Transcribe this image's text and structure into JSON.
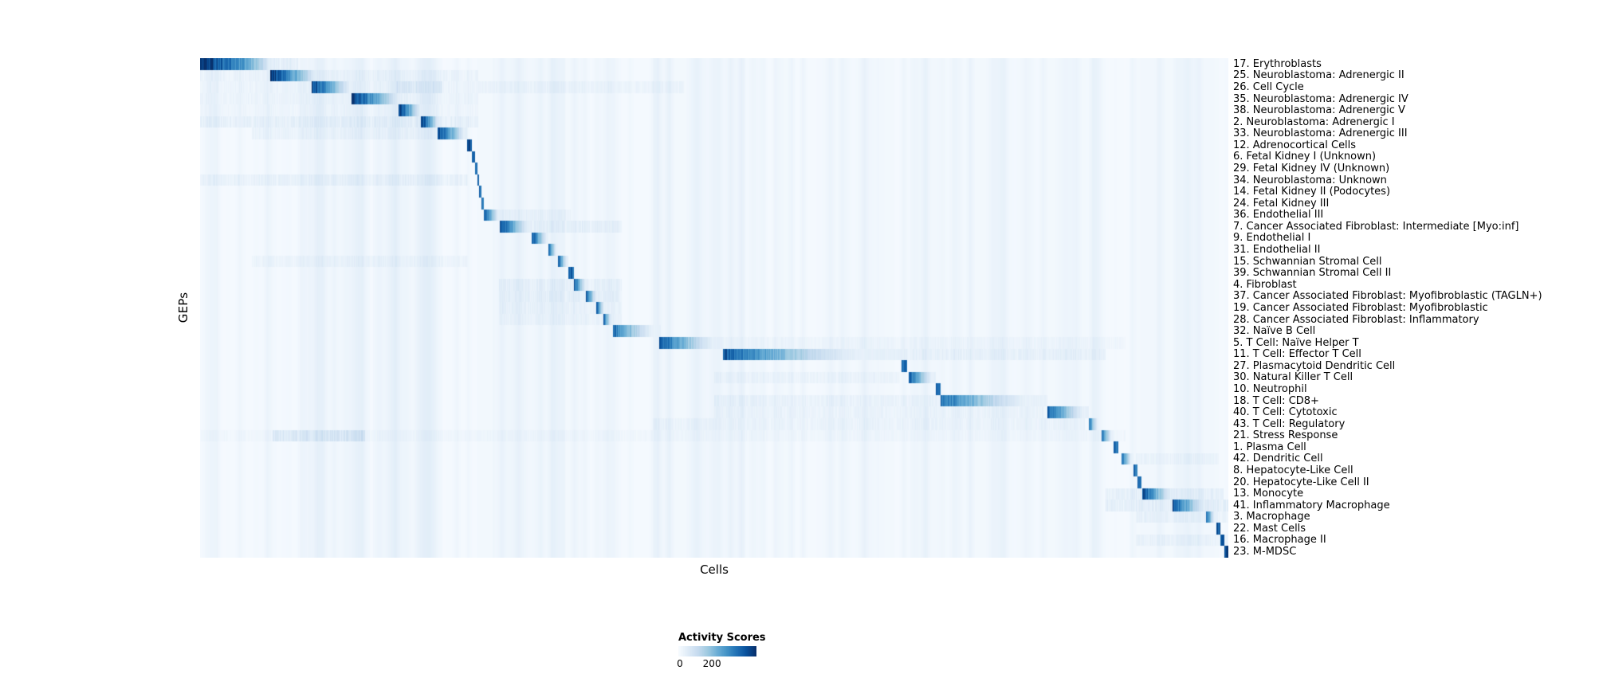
{
  "figure": {
    "background": "#ffffff"
  },
  "chart_data": {
    "type": "heatmap",
    "title": "",
    "xlabel": "Cells",
    "ylabel": "GEPs",
    "colormap": "Blues",
    "legend_position": "bottom-center",
    "colorbar": {
      "title": "Activity Scores",
      "min": 0,
      "max": 200,
      "ticks": [
        {
          "label": "0",
          "pos": 0.02
        },
        {
          "label": "200",
          "pos": 0.43
        }
      ]
    },
    "global_bands": [
      [
        0.105,
        0.165,
        0.03
      ],
      [
        0.168,
        0.235,
        0.045
      ],
      [
        0.284,
        0.355,
        0.038
      ],
      [
        0.44,
        0.53,
        0.025
      ],
      [
        0.6,
        0.66,
        0.02
      ],
      [
        0.69,
        0.88,
        0.022
      ],
      [
        0.93,
        0.99,
        0.025
      ]
    ],
    "rows": [
      {
        "label": "17. Erythroblasts",
        "block": [
          0.0,
          0.068
        ],
        "peak": 1.0,
        "gamma": 0.6,
        "diffuse": [
          [
            0.068,
            0.095,
            0.1
          ]
        ]
      },
      {
        "label": "25. Neuroblastoma: Adrenergic II",
        "block": [
          0.068,
          0.116
        ],
        "peak": 0.97,
        "gamma": 0.9,
        "diffuse": [
          [
            0.0,
            0.27,
            0.06
          ]
        ]
      },
      {
        "label": "26. Cell Cycle",
        "block": [
          0.108,
          0.15
        ],
        "peak": 0.95,
        "gamma": 1.1,
        "diffuse": [
          [
            0.0,
            0.47,
            0.05
          ],
          [
            0.19,
            0.235,
            0.1
          ]
        ]
      },
      {
        "label": "35. Neuroblastoma: Adrenergic IV",
        "block": [
          0.147,
          0.196
        ],
        "peak": 0.97,
        "gamma": 0.9,
        "diffuse": [
          [
            0.0,
            0.27,
            0.05
          ]
        ]
      },
      {
        "label": "38. Neuroblastoma: Adrenergic V",
        "block": [
          0.193,
          0.216
        ],
        "peak": 0.92,
        "gamma": 1.0,
        "diffuse": [
          [
            0.0,
            0.27,
            0.04
          ]
        ]
      },
      {
        "label": "2. Neuroblastoma: Adrenergic I",
        "block": [
          0.214,
          0.233
        ],
        "peak": 0.97,
        "gamma": 0.9,
        "diffuse": [
          [
            0.0,
            0.27,
            0.09
          ]
        ]
      },
      {
        "label": "33. Neuroblastoma: Adrenergic III",
        "block": [
          0.231,
          0.259
        ],
        "peak": 0.93,
        "gamma": 1.0,
        "diffuse": [
          [
            0.05,
            0.26,
            0.06
          ]
        ]
      },
      {
        "label": "12. Adrenocortical Cells",
        "block": [
          0.259,
          0.264
        ],
        "peak": 0.88
      },
      {
        "label": "6. Fetal Kidney I (Unknown)",
        "block": [
          0.264,
          0.267
        ],
        "peak": 0.85
      },
      {
        "label": "29. Fetal Kidney IV (Unknown)",
        "block": [
          0.267,
          0.269
        ],
        "peak": 0.82
      },
      {
        "label": "34. Neuroblastoma: Unknown",
        "block": [
          0.269,
          0.271
        ],
        "peak": 0.8,
        "diffuse": [
          [
            0.0,
            0.26,
            0.07
          ]
        ]
      },
      {
        "label": "14. Fetal Kidney II (Podocytes)",
        "block": [
          0.271,
          0.273
        ],
        "peak": 0.82
      },
      {
        "label": "24. Fetal Kidney III",
        "block": [
          0.273,
          0.2755
        ],
        "peak": 0.8
      },
      {
        "label": "36. Endothelial III",
        "block": [
          0.2755,
          0.291
        ],
        "peak": 0.88,
        "gamma": 1.0,
        "diffuse": [
          [
            0.29,
            0.36,
            0.06
          ]
        ]
      },
      {
        "label": "7. Cancer Associated Fibroblast: Intermediate [Myo:inf]",
        "block": [
          0.291,
          0.322
        ],
        "peak": 0.92,
        "gamma": 1.1,
        "diffuse": [
          [
            0.32,
            0.41,
            0.08
          ]
        ]
      },
      {
        "label": "9. Endothelial I",
        "block": [
          0.322,
          0.338
        ],
        "peak": 0.9,
        "gamma": 1.0
      },
      {
        "label": "31. Endothelial II",
        "block": [
          0.338,
          0.348
        ],
        "peak": 0.87
      },
      {
        "label": "15. Schwannian Stromal Cell",
        "block": [
          0.348,
          0.358
        ],
        "peak": 0.87,
        "diffuse": [
          [
            0.05,
            0.26,
            0.05
          ]
        ]
      },
      {
        "label": "39. Schwannian Stromal Cell II",
        "block": [
          0.358,
          0.363
        ],
        "peak": 0.82
      },
      {
        "label": "4. Fibroblast",
        "block": [
          0.363,
          0.377
        ],
        "peak": 0.87,
        "diffuse": [
          [
            0.29,
            0.41,
            0.07
          ]
        ]
      },
      {
        "label": "37. Cancer Associated Fibroblast: Myofibroblastic (TAGLN+)",
        "block": [
          0.375,
          0.387
        ],
        "peak": 0.87,
        "diffuse": [
          [
            0.29,
            0.41,
            0.08
          ]
        ]
      },
      {
        "label": "19. Cancer Associated Fibroblast: Myofibroblastic",
        "block": [
          0.385,
          0.394
        ],
        "peak": 0.85,
        "diffuse": [
          [
            0.29,
            0.41,
            0.06
          ]
        ]
      },
      {
        "label": "28. Cancer Associated Fibroblast: Inflammatory",
        "block": [
          0.392,
          0.401
        ],
        "peak": 0.83,
        "diffuse": [
          [
            0.29,
            0.41,
            0.05
          ]
        ]
      },
      {
        "label": "32. Naïve B Cell",
        "block": [
          0.401,
          0.448
        ],
        "peak": 0.78,
        "gamma": 1.4
      },
      {
        "label": "5. T Cell: Naïve Helper T",
        "block": [
          0.446,
          0.508
        ],
        "peak": 0.88,
        "gamma": 1.3,
        "diffuse": [
          [
            0.5,
            0.9,
            0.04
          ]
        ]
      },
      {
        "label": "11. T Cell: Effector T Cell",
        "block": [
          0.508,
          0.682
        ],
        "peak": 0.85,
        "gamma": 1.7,
        "diffuse": [
          [
            0.68,
            0.88,
            0.07
          ]
        ]
      },
      {
        "label": "27. Plasmacytoid Dendritic Cell",
        "block": [
          0.682,
          0.687
        ],
        "peak": 0.82
      },
      {
        "label": "30. Natural Killer T Cell",
        "block": [
          0.689,
          0.715
        ],
        "peak": 0.82,
        "gamma": 1.2,
        "diffuse": [
          [
            0.5,
            0.68,
            0.05
          ]
        ]
      },
      {
        "label": "10. Neutrophil",
        "block": [
          0.715,
          0.72
        ],
        "peak": 0.78
      },
      {
        "label": "18. T Cell: CD8+",
        "block": [
          0.72,
          0.824
        ],
        "peak": 0.78,
        "gamma": 1.5,
        "diffuse": [
          [
            0.5,
            0.72,
            0.06
          ]
        ]
      },
      {
        "label": "40. T Cell: Cytotoxic",
        "block": [
          0.824,
          0.864
        ],
        "peak": 0.82,
        "gamma": 1.2,
        "diffuse": [
          [
            0.5,
            0.82,
            0.05
          ]
        ]
      },
      {
        "label": "43. T Cell: Regulatory",
        "block": [
          0.864,
          0.874
        ],
        "peak": 0.78,
        "diffuse": [
          [
            0.44,
            0.86,
            0.05
          ]
        ]
      },
      {
        "label": "21. Stress Response",
        "block": [
          0.876,
          0.888
        ],
        "peak": 0.82,
        "diffuse": [
          [
            0.07,
            0.16,
            0.14
          ],
          [
            0.0,
            0.9,
            0.03
          ]
        ]
      },
      {
        "label": "1. Plasma Cell",
        "block": [
          0.888,
          0.893
        ],
        "peak": 0.8
      },
      {
        "label": "42. Dendritic Cell",
        "block": [
          0.896,
          0.907
        ],
        "peak": 0.82,
        "diffuse": [
          [
            0.91,
            0.99,
            0.05
          ]
        ]
      },
      {
        "label": "8. Hepatocyte-Like Cell",
        "block": [
          0.907,
          0.911
        ],
        "peak": 0.78
      },
      {
        "label": "20. Hepatocyte-Like Cell II",
        "block": [
          0.911,
          0.915
        ],
        "peak": 0.76
      },
      {
        "label": "13. Monocyte",
        "block": [
          0.916,
          0.948
        ],
        "peak": 0.88,
        "gamma": 1.1,
        "diffuse": [
          [
            0.88,
            0.995,
            0.09
          ]
        ]
      },
      {
        "label": "41. Inflammatory Macrophage",
        "block": [
          0.945,
          0.981
        ],
        "peak": 0.88,
        "gamma": 1.1,
        "diffuse": [
          [
            0.88,
            1.0,
            0.1
          ]
        ]
      },
      {
        "label": "3. Macrophage",
        "block": [
          0.978,
          0.988
        ],
        "peak": 0.82,
        "diffuse": [
          [
            0.91,
            1.0,
            0.07
          ]
        ]
      },
      {
        "label": "22. Mast Cells",
        "block": [
          0.988,
          0.992
        ],
        "peak": 0.88
      },
      {
        "label": "16. Macrophage II",
        "block": [
          0.992,
          0.9955
        ],
        "peak": 0.84,
        "diffuse": [
          [
            0.91,
            1.0,
            0.06
          ]
        ]
      },
      {
        "label": "23. M-MDSC",
        "block": [
          0.9955,
          1.0
        ],
        "peak": 0.95
      }
    ]
  }
}
